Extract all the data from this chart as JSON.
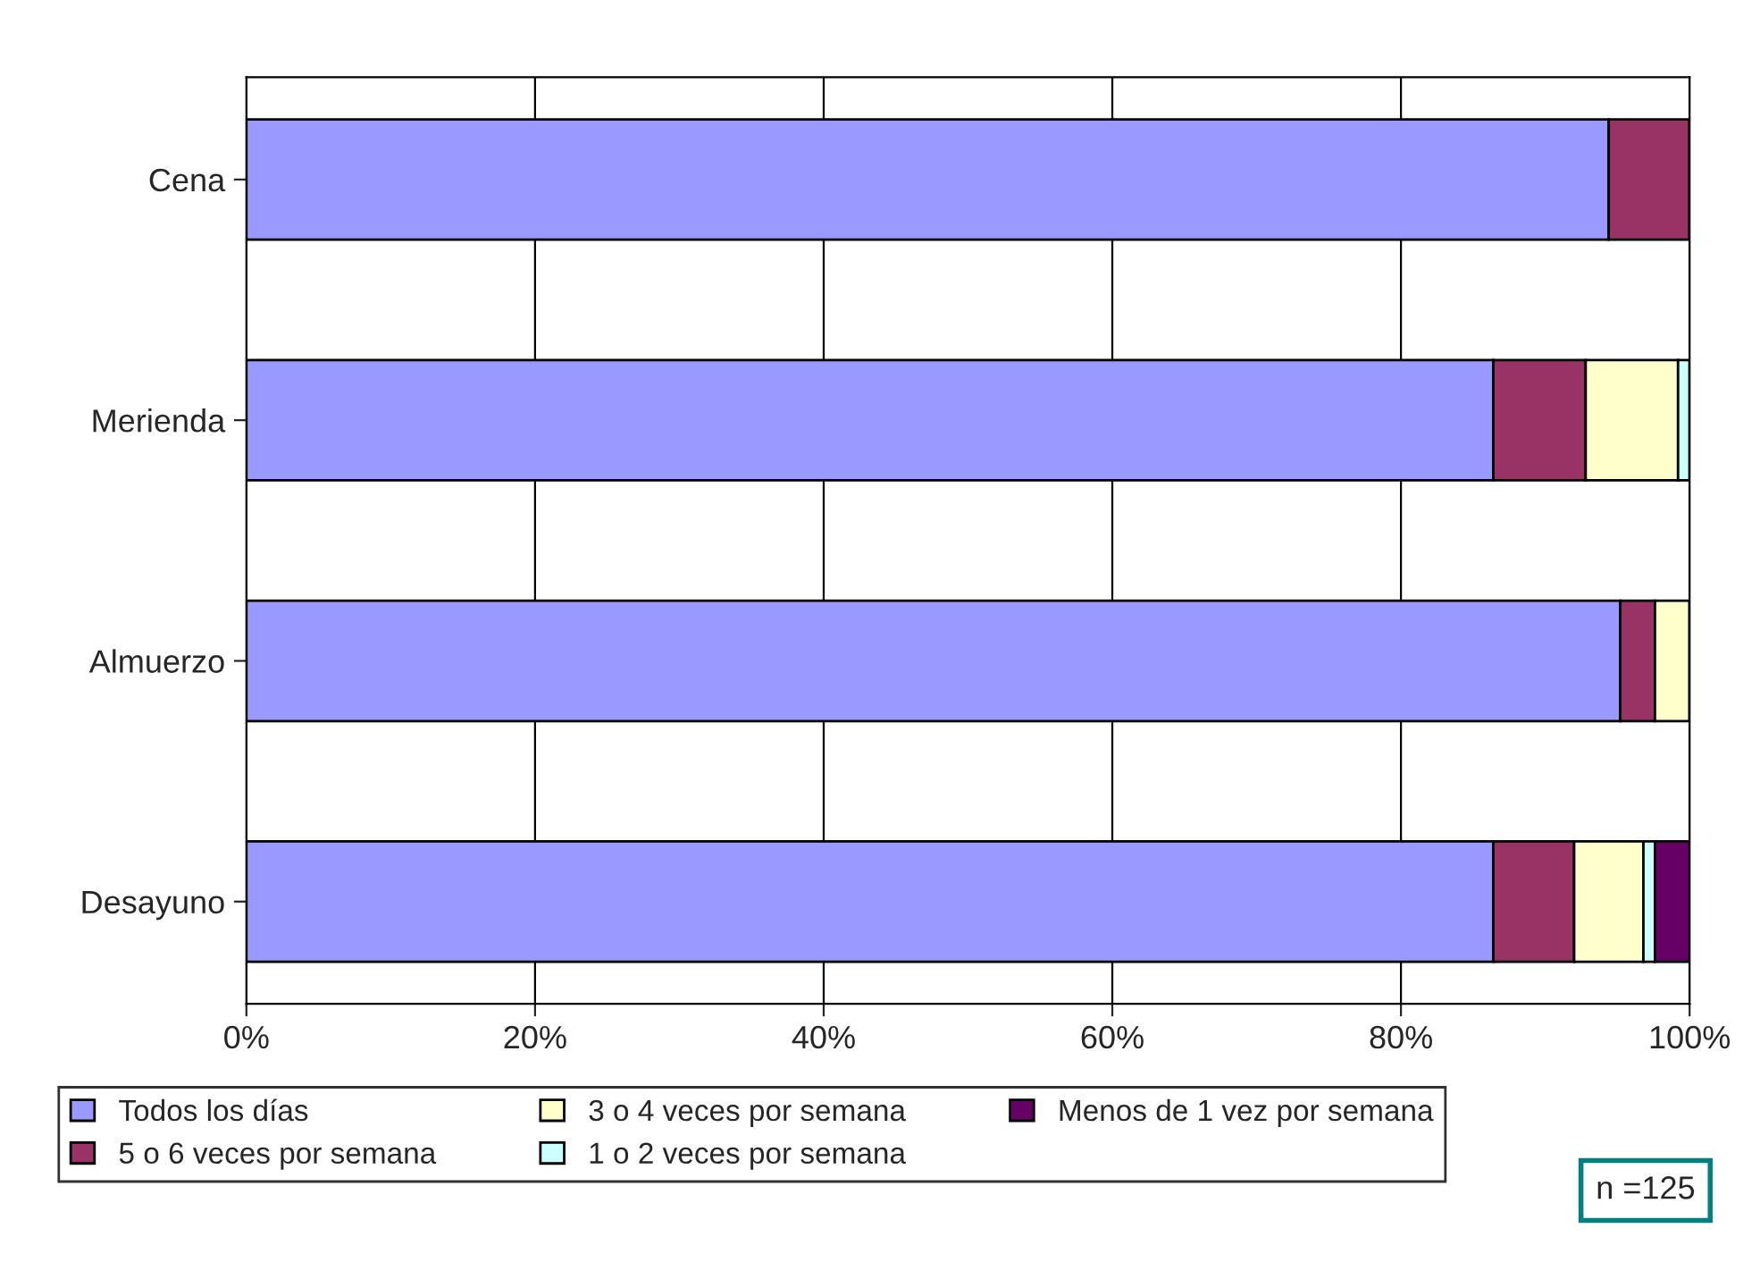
{
  "chart_data": {
    "type": "bar",
    "orientation": "horizontal",
    "stacked": true,
    "categories": [
      "Cena",
      "Merienda",
      "Almuerzo",
      "Desayuno"
    ],
    "series": [
      {
        "name": "Todos los días",
        "color": "#9999ff",
        "values": [
          94.4,
          86.4,
          95.2,
          86.4
        ]
      },
      {
        "name": "5 o 6 veces por semana",
        "color": "#993366",
        "values": [
          5.6,
          6.4,
          2.4,
          5.6
        ]
      },
      {
        "name": "3 o 4 veces por semana",
        "color": "#ffffcc",
        "values": [
          0,
          6.4,
          2.4,
          4.8
        ]
      },
      {
        "name": "1 o 2 veces por semana",
        "color": "#ccffff",
        "values": [
          0,
          0.8,
          0,
          0.8
        ]
      },
      {
        "name": "Menos de 1 vez por semana",
        "color": "#660066",
        "values": [
          0,
          0,
          0,
          2.4
        ]
      }
    ],
    "xlim": [
      0,
      100
    ],
    "xticks": [
      {
        "value": 0,
        "label": "0%"
      },
      {
        "value": 20,
        "label": "20%"
      },
      {
        "value": 40,
        "label": "40%"
      },
      {
        "value": 60,
        "label": "60%"
      },
      {
        "value": 80,
        "label": "80%"
      },
      {
        "value": 100,
        "label": "100%"
      }
    ],
    "grid": "x",
    "legend": "bottom",
    "annotations": [
      "n =125"
    ]
  }
}
